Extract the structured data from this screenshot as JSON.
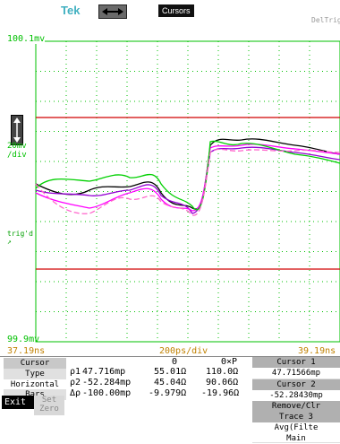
{
  "header": {
    "brand": "Tek",
    "mode_button": "horizontal-arrows-icon",
    "mode_label": "Cursors",
    "trigger_label": "DelTrig"
  },
  "scope": {
    "vertical_top": "100.1mv",
    "vertical_scale": "20mv",
    "vertical_scale_unit": "/div",
    "trigger_marker": "trig'd",
    "vertical_bottom": "99.9mv",
    "time_left": "37.19ns",
    "time_scale": "200ps/div",
    "time_right": "39.19ns",
    "colors": {
      "grid": "#00c000",
      "cursor": "#d00000",
      "traces": [
        "#000000",
        "#9400d3",
        "#ff00ff",
        "#00d000",
        "#ff66cc"
      ]
    }
  },
  "menu": {
    "tabs": [
      "Cursor",
      "Type",
      "Horizontal",
      "Bars"
    ],
    "col_headers": [
      "Θ",
      "Θ×P"
    ],
    "rows": [
      {
        "label": "ρ1",
        "value": "47.716mp",
        "theta": "55.01Ω",
        "theta_p": "110.0Ω"
      },
      {
        "label": "ρ2",
        "value": "-52.284mp",
        "theta": "45.04Ω",
        "theta_p": "90.06Ω"
      },
      {
        "label": "Δρ",
        "value": "-100.00mp",
        "theta": "-9.979Ω",
        "theta_p": "-19.96Ω"
      }
    ],
    "exit_label": "Exit",
    "set_zero_label": "Set Zero",
    "cursor1_title": "Cursor 1",
    "cursor1_value": "47.71566mp",
    "cursor2_title": "Cursor 2",
    "cursor2_value": "-52.28430mp",
    "remove_label": "Remove/Clr",
    "remove_sub": "Trace 3",
    "avg_label": "Avg(Filte",
    "avg_sub": "Main"
  }
}
